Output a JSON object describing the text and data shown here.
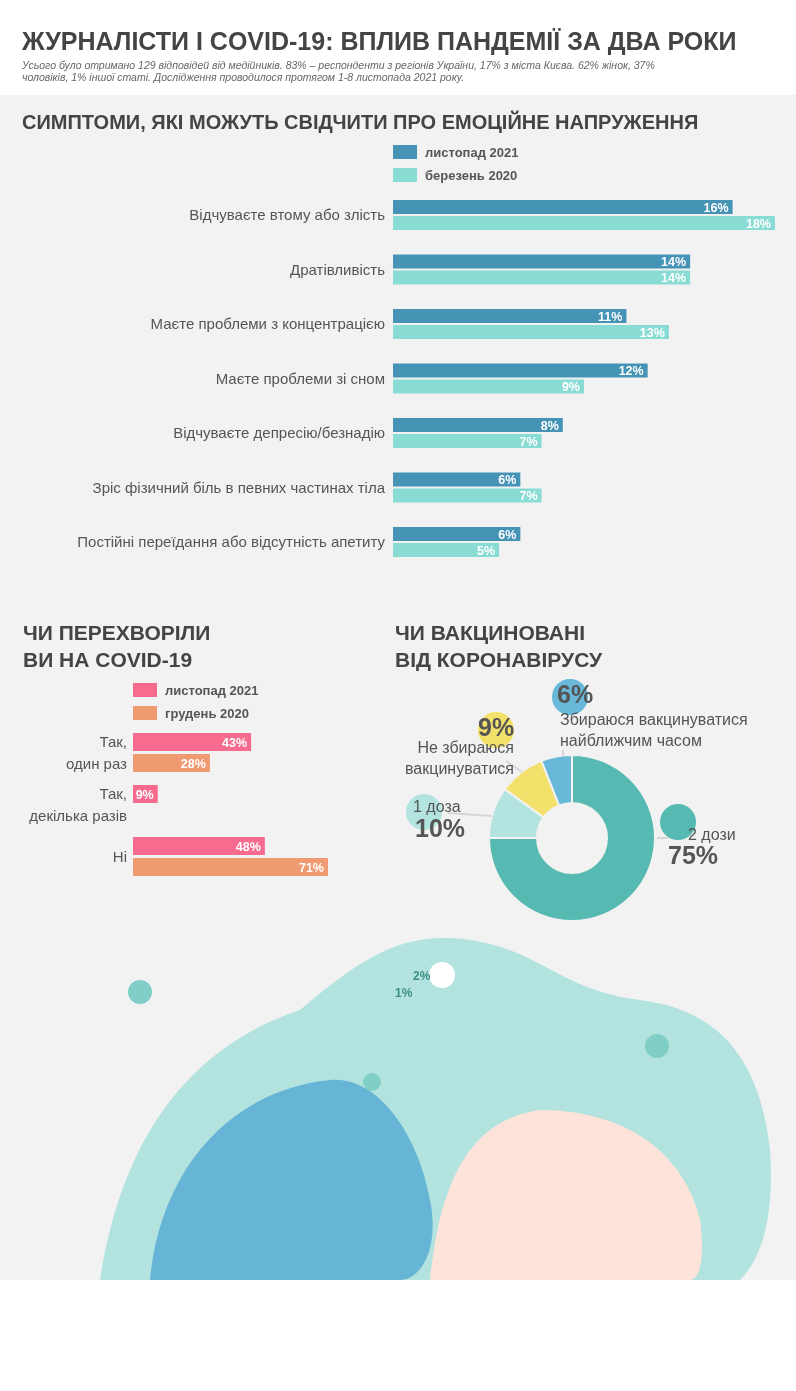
{
  "chart_data": [
    {
      "type": "other",
      "title": "ЖУРНАЛІСТИ І COVID-19: ВПЛИВ ПАНДЕМІЇ ЗА ДВА РОКИ",
      "subtitle": "Усього було отримано 129 відповідей від медійників. 83% – респонденти з регіонів України, 17% з міста Києва. 62% жінок, 37% чоловіків, 1% іншої статі. Дослідження проводилося протягом 1-8 листопада 2021 року."
    },
    {
      "type": "bar",
      "orientation": "horizontal",
      "title": "СИМПТОМИ, ЯКІ МОЖУТЬ СВІДЧИТИ ПРО ЕМОЦІЙНЕ НАПРУЖЕННЯ",
      "legend": "top",
      "categories": [
        "Відчуваєте втому або злість",
        "Дратівливість",
        "Маєте проблеми з концентрацією",
        "Маєте проблеми зі сном",
        "Відчуваєте депресію/безнадію",
        "Зріс фізичний біль в певних частинах тіла",
        "Постійні переїдання або відсутність апетиту"
      ],
      "series": [
        {
          "name": "листопад 2021",
          "color": "#4593b5",
          "values": [
            16,
            14,
            11,
            12,
            8,
            6,
            6
          ],
          "value_labels": [
            "16%",
            "14%",
            "11%",
            "12%",
            "8%",
            "6%",
            "6%"
          ]
        },
        {
          "name": "березень 2020",
          "color": "#88dcd3",
          "values": [
            18,
            14,
            13,
            9,
            7,
            7,
            5
          ],
          "value_labels": [
            "18%",
            "14%",
            "13%",
            "9%",
            "7%",
            "7%",
            "5%"
          ]
        }
      ]
    },
    {
      "type": "bar",
      "orientation": "horizontal",
      "title": "ЧИ ПЕРЕХВОРІЛИ ВИ НА COVID-19",
      "legend": "top",
      "categories": [
        "Так, один раз",
        "Так, декілька разів",
        "Ні"
      ],
      "series": [
        {
          "name": "листопад 2021",
          "color": "#f76b8f",
          "values": [
            43,
            9,
            48
          ],
          "value_labels": [
            "43%",
            "9%",
            "48%"
          ]
        },
        {
          "name": "грудень 2020",
          "color": "#f09a72",
          "values": [
            28,
            null,
            71
          ],
          "value_labels": [
            "28%",
            null,
            "71%"
          ]
        }
      ]
    },
    {
      "type": "donut",
      "title": "ЧИ ВАКЦИНОВАНІ ВІД КОРОНАВІРУСУ",
      "categories": [
        "2 дози",
        "1 доза",
        "Не збираюся вакцинуватися",
        "Збираюся вакцинуватися найближчим часом"
      ],
      "values": [
        75,
        10,
        9,
        6
      ],
      "value_labels": [
        "75%",
        "10%",
        "9%",
        "6%"
      ],
      "colors": [
        "#56b9b2",
        "#b3e4df",
        "#f3e16c",
        "#67b8d9"
      ],
      "annotations": [
        "2%",
        "1%"
      ]
    }
  ]
}
